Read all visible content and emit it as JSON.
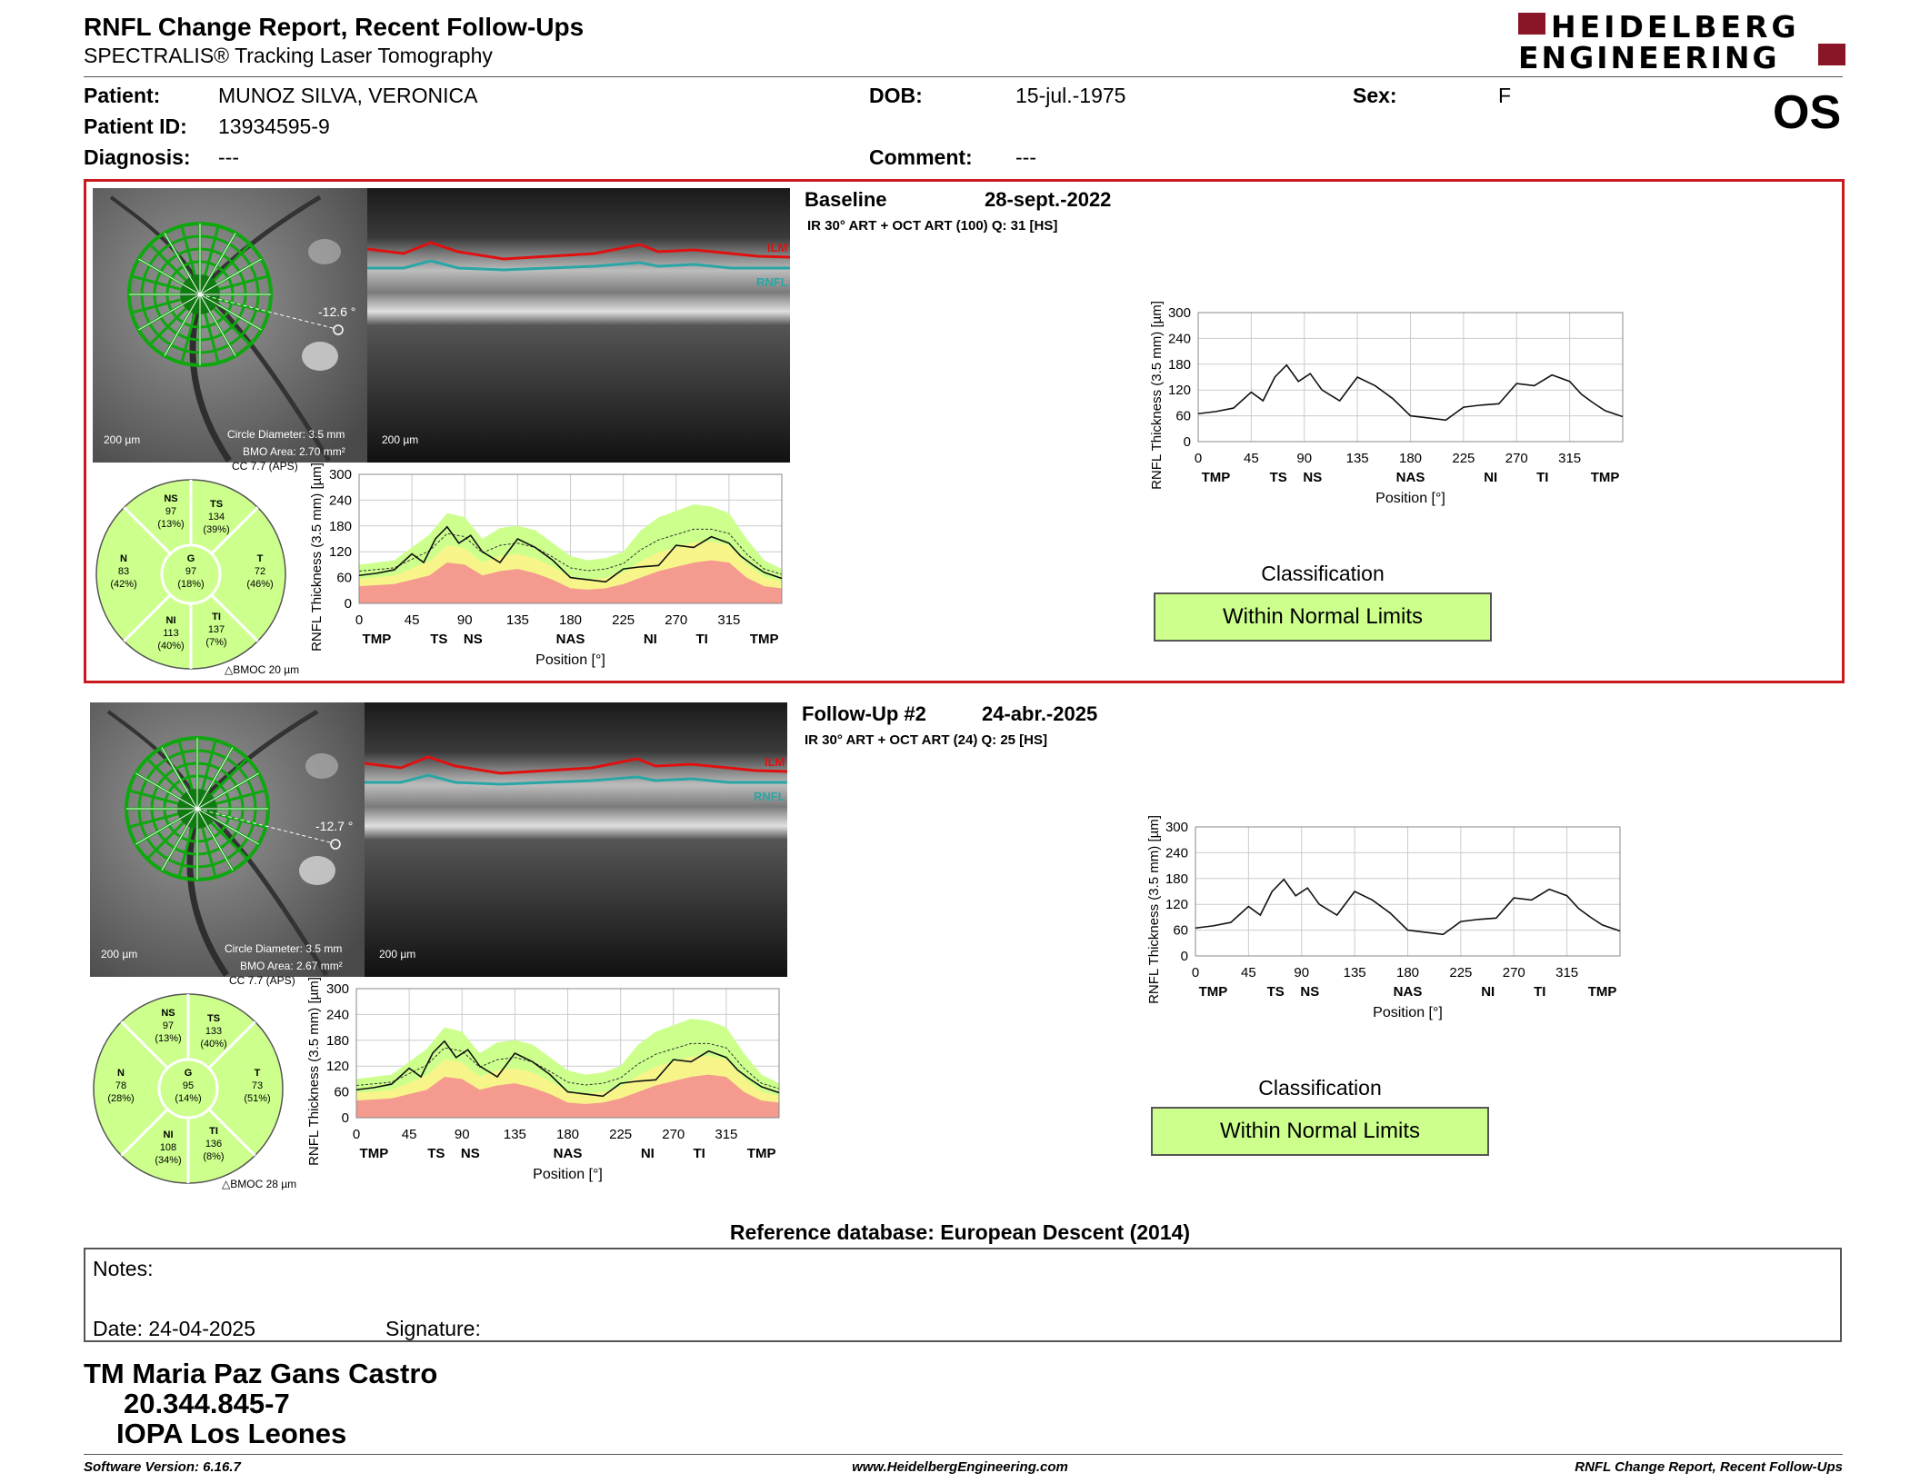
{
  "header": {
    "title": "RNFL Change Report, Recent Follow-Ups",
    "subtitle": "SPECTRALIS® Tracking Laser Tomography",
    "brand_line1": "HEIDELBERG",
    "brand_line2": "ENGINEERING",
    "eye": "OS"
  },
  "patient": {
    "patient_label": "Patient:",
    "patient_value": "MUNOZ SILVA, VERONICA",
    "id_label": "Patient ID:",
    "id_value": "13934595-9",
    "diagnosis_label": "Diagnosis:",
    "diagnosis_value": "---",
    "dob_label": "DOB:",
    "dob_value": "15-jul.-1975",
    "comment_label": "Comment:",
    "comment_value": "---",
    "sex_label": "Sex:",
    "sex_value": "F"
  },
  "colors": {
    "accent_red": "#c8191e",
    "normal": "#ccff8c",
    "borderline": "#f7f58a",
    "outside": "#f59a8f",
    "ilm": "#e01010",
    "rnfl": "#2aa6a6"
  },
  "common": {
    "scale_label": "200 µm",
    "circle_diameter": "Circle Diameter: 3.5 mm",
    "x_ticks": [
      "0",
      "45",
      "90",
      "135",
      "180",
      "225",
      "270",
      "315"
    ],
    "y_ticks": [
      "0",
      "60",
      "120",
      "180",
      "240",
      "300"
    ],
    "sectors": [
      "TMP",
      "TS",
      "NS",
      "NAS",
      "NI",
      "TI",
      "TMP"
    ],
    "xlabel": "Position [°]",
    "ylabel": "RNFL Thickness (3.5 mm) [µm]",
    "ilm": "ILM",
    "rnfl": "RNFL",
    "classification_label": "Classification"
  },
  "exams": [
    {
      "heading": "Baseline",
      "date": "28-sept.-2022",
      "acquisition": "IR 30° ART + OCT ART (100) Q: 31 [HS]",
      "angle": "-12.6 °",
      "bmo_area": "BMO Area: 2.70 mm²",
      "cc": "CC 7.7 (APS)",
      "bmoc": "BMOC 20 µm",
      "sectors": {
        "NS": {
          "label": "NS",
          "value": "97",
          "pct": "(13%)"
        },
        "TS": {
          "label": "TS",
          "value": "134",
          "pct": "(39%)"
        },
        "N": {
          "label": "N",
          "value": "83",
          "pct": "(42%)"
        },
        "G": {
          "label": "G",
          "value": "97",
          "pct": "(18%)"
        },
        "T": {
          "label": "T",
          "value": "72",
          "pct": "(46%)"
        },
        "NI": {
          "label": "NI",
          "value": "113",
          "pct": "(40%)"
        },
        "TI": {
          "label": "TI",
          "value": "137",
          "pct": "(7%)"
        }
      },
      "classification": "Within Normal Limits"
    },
    {
      "heading": "Follow-Up #2",
      "date": "24-abr.-2025",
      "acquisition": "IR 30° ART + OCT ART (24) Q: 25 [HS]",
      "angle": "-12.7 °",
      "bmo_area": "BMO Area: 2.67 mm²",
      "cc": "CC 7.7 (APS)",
      "bmoc": "BMOC 28 µm",
      "sectors": {
        "NS": {
          "label": "NS",
          "value": "97",
          "pct": "(13%)"
        },
        "TS": {
          "label": "TS",
          "value": "133",
          "pct": "(40%)"
        },
        "N": {
          "label": "N",
          "value": "78",
          "pct": "(28%)"
        },
        "G": {
          "label": "G",
          "value": "95",
          "pct": "(14%)"
        },
        "T": {
          "label": "T",
          "value": "73",
          "pct": "(51%)"
        },
        "NI": {
          "label": "NI",
          "value": "108",
          "pct": "(34%)"
        },
        "TI": {
          "label": "TI",
          "value": "136",
          "pct": "(8%)"
        }
      },
      "classification": "Within Normal Limits"
    }
  ],
  "chart_data": [
    {
      "type": "line",
      "xlabel": "Position [°]",
      "ylabel": "RNFL Thickness (3.5 mm) [µm]",
      "xlim": [
        0,
        360
      ],
      "ylim": [
        0,
        300
      ],
      "x": [
        0,
        15,
        30,
        45,
        55,
        65,
        75,
        85,
        95,
        105,
        120,
        135,
        150,
        165,
        180,
        195,
        210,
        225,
        240,
        255,
        270,
        285,
        300,
        315,
        325,
        335,
        345,
        360
      ],
      "series": [
        {
          "values": [
            65,
            70,
            78,
            115,
            95,
            150,
            178,
            140,
            158,
            120,
            95,
            150,
            130,
            100,
            60,
            55,
            50,
            80,
            85,
            88,
            135,
            130,
            155,
            140,
            110,
            90,
            72,
            58
          ]
        }
      ],
      "normal_band": {
        "x": [
          0,
          30,
          60,
          75,
          90,
          105,
          120,
          135,
          150,
          165,
          180,
          195,
          210,
          225,
          240,
          255,
          270,
          285,
          300,
          315,
          330,
          345,
          360
        ],
        "upper": [
          90,
          100,
          160,
          210,
          200,
          150,
          175,
          180,
          170,
          140,
          110,
          100,
          105,
          120,
          170,
          200,
          215,
          230,
          225,
          210,
          150,
          100,
          80
        ],
        "lower": [
          40,
          45,
          65,
          95,
          90,
          65,
          75,
          80,
          70,
          55,
          35,
          32,
          35,
          45,
          60,
          75,
          85,
          95,
          100,
          95,
          60,
          40,
          35
        ]
      },
      "red_zone": {
        "x": [
          0,
          30,
          60,
          75,
          90,
          105,
          120,
          135,
          150,
          165,
          180,
          195,
          210,
          225,
          240,
          255,
          270,
          285,
          300,
          315,
          330,
          345,
          360
        ],
        "values": [
          40,
          45,
          65,
          95,
          90,
          65,
          75,
          80,
          70,
          55,
          35,
          32,
          35,
          45,
          60,
          75,
          85,
          95,
          100,
          95,
          60,
          40,
          35
        ]
      }
    }
  ],
  "reference": "Reference database: European Descent (2014)",
  "notes": {
    "label": "Notes:",
    "date": "Date: 24-04-2025",
    "signature": "Signature:"
  },
  "signer": {
    "name": "TM Maria Paz Gans Castro",
    "rut": "20.344.845-7",
    "place": "IOPA Los Leones"
  },
  "footer": {
    "software": "Software Version: 6.16.7",
    "url": "www.HeidelbergEngineering.com",
    "report": "RNFL Change Report, Recent Follow-Ups"
  }
}
